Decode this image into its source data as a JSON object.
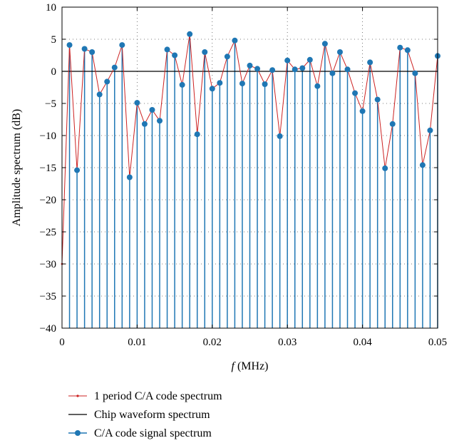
{
  "chart_data": {
    "type": "line",
    "xlabel_italic": "f",
    "xlabel_rest": " (MHz)",
    "ylabel": "Amplitude spectrum (dB)",
    "xlim": [
      0,
      0.05
    ],
    "ylim": [
      -40,
      10
    ],
    "x_ticks": [
      0,
      0.01,
      0.02,
      0.03,
      0.04,
      0.05
    ],
    "x_tick_labels": [
      "0",
      "0.01",
      "0.02",
      "0.03",
      "0.04",
      "0.05"
    ],
    "y_ticks": [
      10,
      5,
      0,
      -5,
      -10,
      -15,
      -20,
      -25,
      -30,
      -35,
      -40
    ],
    "y_tick_labels": [
      "10",
      "5",
      "0",
      "−5",
      "−10",
      "−15",
      "−20",
      "−25",
      "−30",
      "−35",
      "−40"
    ],
    "grid": "dotted",
    "legend_position": "bottom",
    "series": [
      {
        "name": "1 period C/A code spectrum",
        "color": "#cc2222",
        "style": "line-with-small-markers",
        "x": [
          0,
          0.001,
          0.002,
          0.003,
          0.004,
          0.005,
          0.006,
          0.007,
          0.008,
          0.009,
          0.01,
          0.011,
          0.012,
          0.013,
          0.014,
          0.015,
          0.016,
          0.017,
          0.018,
          0.019,
          0.02,
          0.021,
          0.022,
          0.023,
          0.024,
          0.025,
          0.026,
          0.027,
          0.028,
          0.029,
          0.03,
          0.031,
          0.032,
          0.033,
          0.034,
          0.035,
          0.036,
          0.037,
          0.038,
          0.039,
          0.04,
          0.041,
          0.042,
          0.043,
          0.044,
          0.045,
          0.046,
          0.047,
          0.048,
          0.049,
          0.05
        ],
        "y": [
          -30.0,
          4.1,
          -15.4,
          3.5,
          3.0,
          -3.6,
          -1.6,
          0.6,
          4.1,
          -16.5,
          -4.9,
          -8.2,
          -6.0,
          -7.7,
          3.4,
          2.5,
          -2.1,
          5.8,
          -9.8,
          3.0,
          -2.7,
          -1.8,
          2.3,
          4.8,
          -1.9,
          0.9,
          0.4,
          -2.0,
          0.2,
          -10.1,
          1.7,
          0.3,
          0.5,
          1.8,
          -2.3,
          4.3,
          -0.3,
          3.0,
          0.3,
          -3.4,
          -6.2,
          1.4,
          -4.4,
          -15.1,
          -8.2,
          3.7,
          3.3,
          -0.3,
          -14.6,
          -9.2,
          2.4
        ]
      },
      {
        "name": "Chip waveform spectrum",
        "color": "#000000",
        "style": "line",
        "x": [
          0,
          0.05
        ],
        "y": [
          0,
          0
        ]
      },
      {
        "name": "C/A code signal spectrum",
        "color": "#1f77b4",
        "style": "stem-with-markers",
        "x": [
          0.001,
          0.002,
          0.003,
          0.004,
          0.005,
          0.006,
          0.007,
          0.008,
          0.009,
          0.01,
          0.011,
          0.012,
          0.013,
          0.014,
          0.015,
          0.016,
          0.017,
          0.018,
          0.019,
          0.02,
          0.021,
          0.022,
          0.023,
          0.024,
          0.025,
          0.026,
          0.027,
          0.028,
          0.029,
          0.03,
          0.031,
          0.032,
          0.033,
          0.034,
          0.035,
          0.036,
          0.037,
          0.038,
          0.039,
          0.04,
          0.041,
          0.042,
          0.043,
          0.044,
          0.045,
          0.046,
          0.047,
          0.048,
          0.049,
          0.05
        ],
        "y": [
          4.1,
          -15.4,
          3.5,
          3.0,
          -3.6,
          -1.6,
          0.6,
          4.1,
          -16.5,
          -4.9,
          -8.2,
          -6.0,
          -7.7,
          3.4,
          2.5,
          -2.1,
          5.8,
          -9.8,
          3.0,
          -2.7,
          -1.8,
          2.3,
          4.8,
          -1.9,
          0.9,
          0.4,
          -2.0,
          0.2,
          -10.1,
          1.7,
          0.3,
          0.5,
          1.8,
          -2.3,
          4.3,
          -0.3,
          3.0,
          0.3,
          -3.4,
          -6.2,
          1.4,
          -4.4,
          -15.1,
          -8.2,
          3.7,
          3.3,
          -0.3,
          -14.6,
          -9.2,
          2.4
        ]
      }
    ]
  }
}
